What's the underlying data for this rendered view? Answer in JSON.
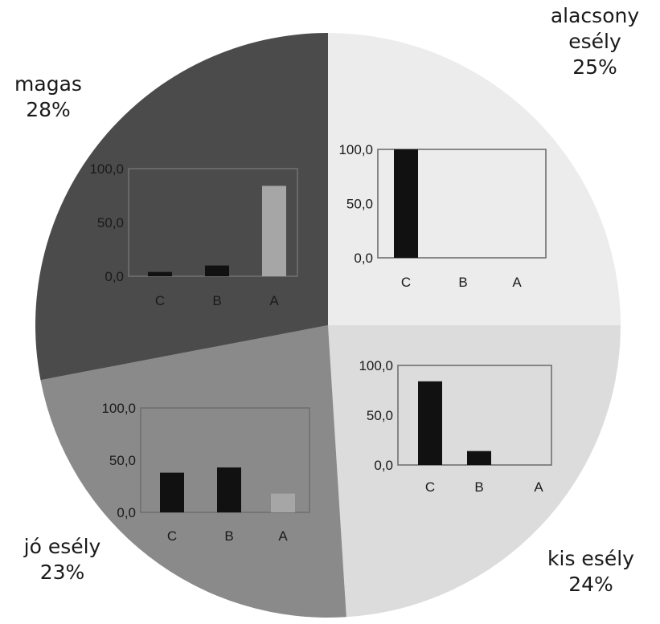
{
  "chart_data": [
    {
      "type": "pie",
      "slices": [
        {
          "label_lines": [
            "alacsony",
            "esély",
            "25%"
          ],
          "value": 25,
          "color": "#ececec"
        },
        {
          "label_lines": [
            "kis esély",
            "24%"
          ],
          "value": 24,
          "color": "#dcdcdc"
        },
        {
          "label_lines": [
            "jó esély",
            "23%"
          ],
          "value": 23,
          "color": "#8a8a8a"
        },
        {
          "label_lines": [
            "magas",
            "28%"
          ],
          "value": 28,
          "color": "#4b4b4b"
        }
      ]
    },
    {
      "type": "bar",
      "inset_of": "alacsony esély",
      "categories": [
        "C",
        "B",
        "A"
      ],
      "values": [
        100.0,
        0.0,
        0.0
      ],
      "bar_colors": [
        "#111111",
        "#111111",
        "#111111"
      ],
      "y_ticks": [
        "0,0",
        "50,0",
        "100,0"
      ],
      "ylim": [
        0,
        100
      ]
    },
    {
      "type": "bar",
      "inset_of": "magas",
      "categories": [
        "C",
        "B",
        "A"
      ],
      "values": [
        4.0,
        10.0,
        84.0
      ],
      "bar_colors": [
        "#111111",
        "#111111",
        "#a6a6a6"
      ],
      "y_ticks": [
        "0,0",
        "50,0",
        "100,0"
      ],
      "ylim": [
        0,
        100
      ]
    },
    {
      "type": "bar",
      "inset_of": "kis esély",
      "categories": [
        "C",
        "B",
        "A"
      ],
      "values": [
        84.0,
        14.0,
        0.0
      ],
      "bar_colors": [
        "#111111",
        "#111111",
        "#111111"
      ],
      "y_ticks": [
        "0,0",
        "50,0",
        "100,0"
      ],
      "ylim": [
        0,
        100
      ]
    },
    {
      "type": "bar",
      "inset_of": "jó esély",
      "categories": [
        "C",
        "B",
        "A"
      ],
      "values": [
        38.0,
        43.0,
        18.0
      ],
      "bar_colors": [
        "#111111",
        "#111111",
        "#a6a6a6"
      ],
      "y_ticks": [
        "0,0",
        "50,0",
        "100,0"
      ],
      "ylim": [
        0,
        100
      ]
    }
  ]
}
